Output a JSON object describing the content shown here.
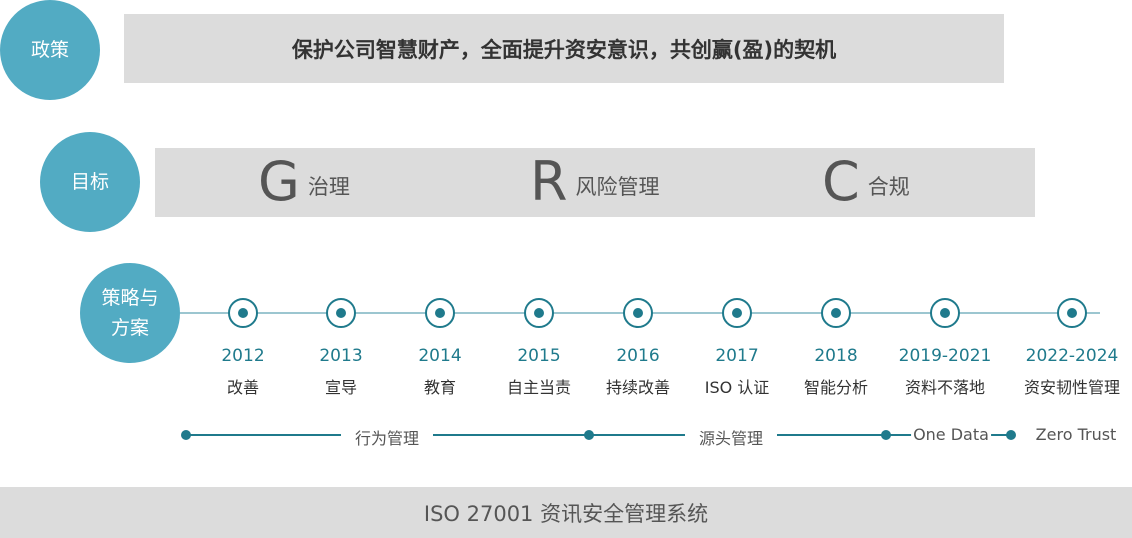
{
  "policy": {
    "label": "政策",
    "text": "保护公司智慧财产，全面提升资安意识，共创赢(盈)的契机"
  },
  "goals": {
    "label": "目标",
    "items": [
      {
        "letter": "G",
        "text": "治理"
      },
      {
        "letter": "R",
        "text": "风险管理"
      },
      {
        "letter": "C",
        "text": "合规"
      }
    ]
  },
  "strategy": {
    "label_line1": "策略与",
    "label_line2": "方案",
    "milestones": [
      {
        "year": "2012",
        "label": "改善"
      },
      {
        "year": "2013",
        "label": "宣导"
      },
      {
        "year": "2014",
        "label": "教育"
      },
      {
        "year": "2015",
        "label": "自主当责"
      },
      {
        "year": "2016",
        "label": "持续改善"
      },
      {
        "year": "2017",
        "label": "ISO 认证"
      },
      {
        "year": "2018",
        "label": "智能分析"
      },
      {
        "year": "2019-2021",
        "label": "资料不落地"
      },
      {
        "year": "2022-2024",
        "label": "资安韧性管理"
      }
    ],
    "phases": [
      "行为管理",
      "源头管理",
      "One Data",
      "Zero Trust"
    ]
  },
  "footer": "ISO 27001 资讯安全管理系统",
  "colors": {
    "circle": "#52abc3",
    "accent": "#1f7a8c",
    "banner": "#dcdcdc"
  }
}
